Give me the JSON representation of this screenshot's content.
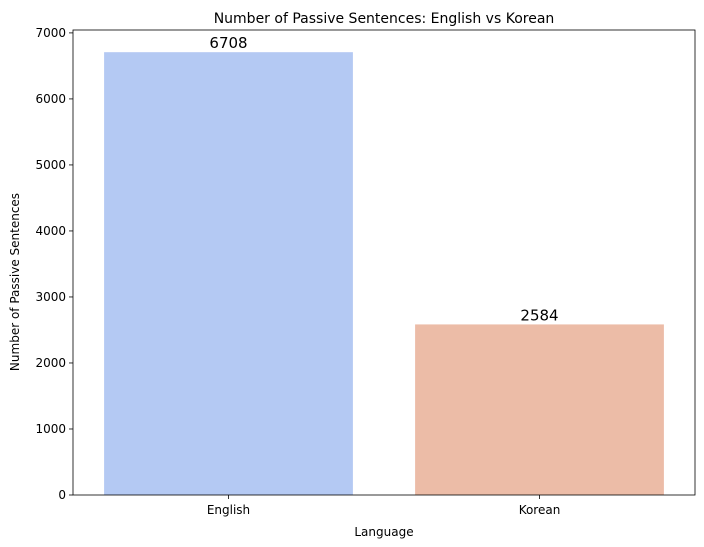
{
  "chart_data": {
    "type": "bar",
    "title": "Number of Passive Sentences: English vs Korean",
    "xlabel": "Language",
    "ylabel": "Number of Passive Sentences",
    "categories": [
      "English",
      "Korean"
    ],
    "values": [
      6708,
      2584
    ],
    "data_labels": [
      "6708",
      "2584"
    ],
    "colors": [
      "#b4c9f3",
      "#ecbca7"
    ],
    "ylim": [
      0,
      7044
    ],
    "yticks": [
      0,
      1000,
      2000,
      3000,
      4000,
      5000,
      6000,
      7000
    ],
    "ytick_labels": [
      "0",
      "1000",
      "2000",
      "3000",
      "4000",
      "5000",
      "6000",
      "7000"
    ],
    "grid": false,
    "legend": "none"
  }
}
